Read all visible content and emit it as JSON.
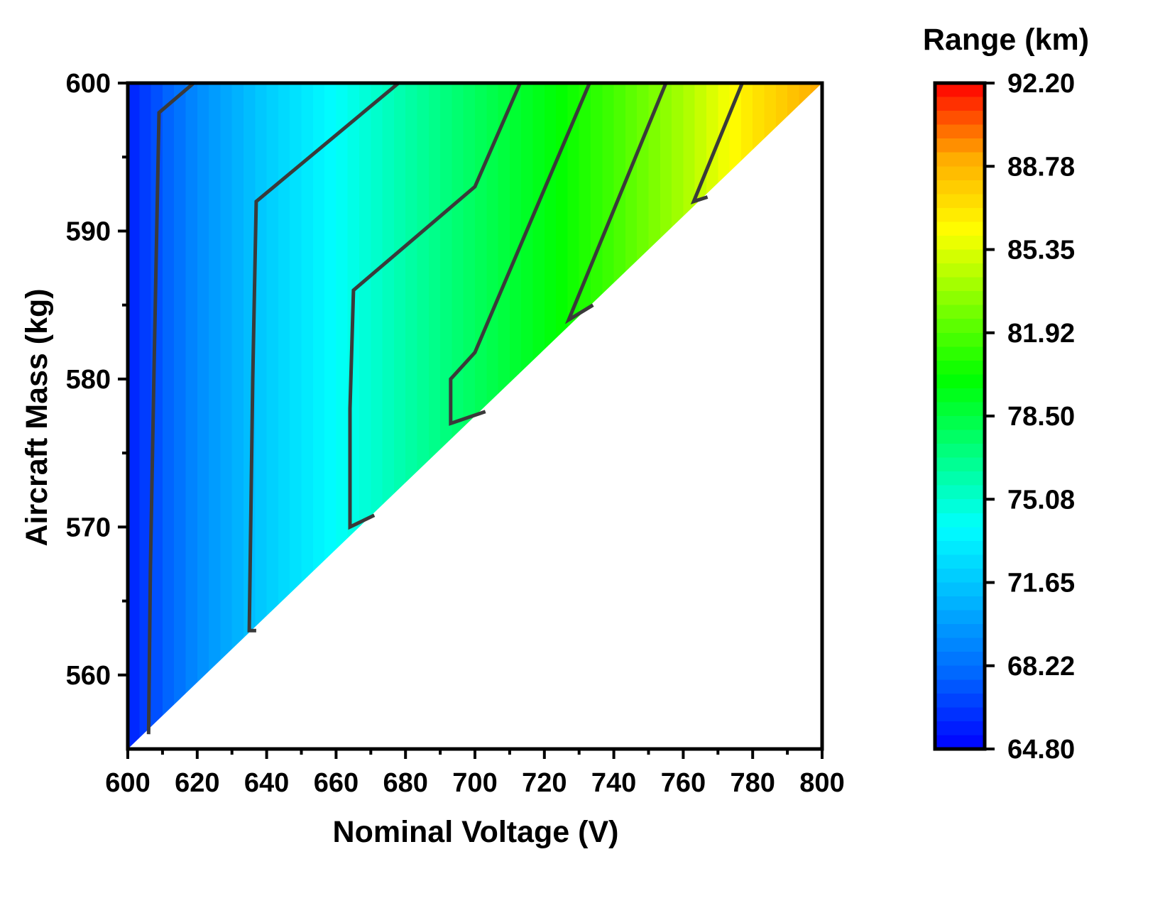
{
  "chart_data": {
    "type": "heatmap",
    "subtype": "filled-contour",
    "xlabel": "Nominal Voltage (V)",
    "ylabel": "Aircraft Mass (kg)",
    "xlim": [
      600,
      800
    ],
    "ylim": [
      555,
      600
    ],
    "xticks": [
      600,
      620,
      640,
      660,
      680,
      700,
      720,
      740,
      760,
      780,
      800
    ],
    "yticks": [
      560,
      570,
      580,
      590,
      600
    ],
    "colorbar": {
      "title": "Range (km)",
      "min": 64.8,
      "max": 92.2,
      "ticks": [
        "64.80",
        "68.22",
        "71.65",
        "75.08",
        "78.50",
        "81.92",
        "85.35",
        "88.78",
        "92.20"
      ],
      "colormap": [
        "#0000ff",
        "#0066ff",
        "#00b4ff",
        "#00ffff",
        "#00ff80",
        "#00ff00",
        "#80ff00",
        "#ffff00",
        "#ffaa00",
        "#ff0000"
      ]
    },
    "valid_region": "above diagonal from (600 V, 555 kg) to (800 V, 600 kg)",
    "contour_lines": [
      {
        "points": [
          [
            606,
            556
          ],
          [
            606.5,
            567
          ],
          [
            607.5,
            580
          ],
          [
            609,
            598
          ],
          [
            619,
            600
          ]
        ]
      },
      {
        "points": [
          [
            637,
            563
          ],
          [
            635,
            563
          ],
          [
            636,
            580
          ],
          [
            637,
            592
          ],
          [
            678,
            600
          ]
        ]
      },
      {
        "points": [
          [
            671,
            570.8
          ],
          [
            664,
            570
          ],
          [
            664,
            578
          ],
          [
            665,
            586
          ],
          [
            700,
            593
          ],
          [
            713,
            600
          ]
        ]
      },
      {
        "points": [
          [
            703,
            577.8
          ],
          [
            693,
            577
          ],
          [
            693,
            580
          ],
          [
            700,
            581.8
          ],
          [
            733,
            600
          ]
        ]
      },
      {
        "points": [
          [
            734,
            585
          ],
          [
            727,
            584
          ],
          [
            755,
            600
          ]
        ]
      },
      {
        "points": [
          [
            767,
            592.3
          ],
          [
            763,
            592
          ],
          [
            777,
            600
          ]
        ]
      }
    ],
    "range_field": {
      "x_values": [
        600,
        620,
        640,
        660,
        680,
        700,
        720,
        740,
        760,
        780,
        800
      ],
      "range_km_at_x": [
        65.7,
        69.3,
        71.9,
        74.0,
        76.0,
        77.8,
        79.6,
        81.6,
        84.0,
        87.0,
        89.2
      ]
    }
  }
}
